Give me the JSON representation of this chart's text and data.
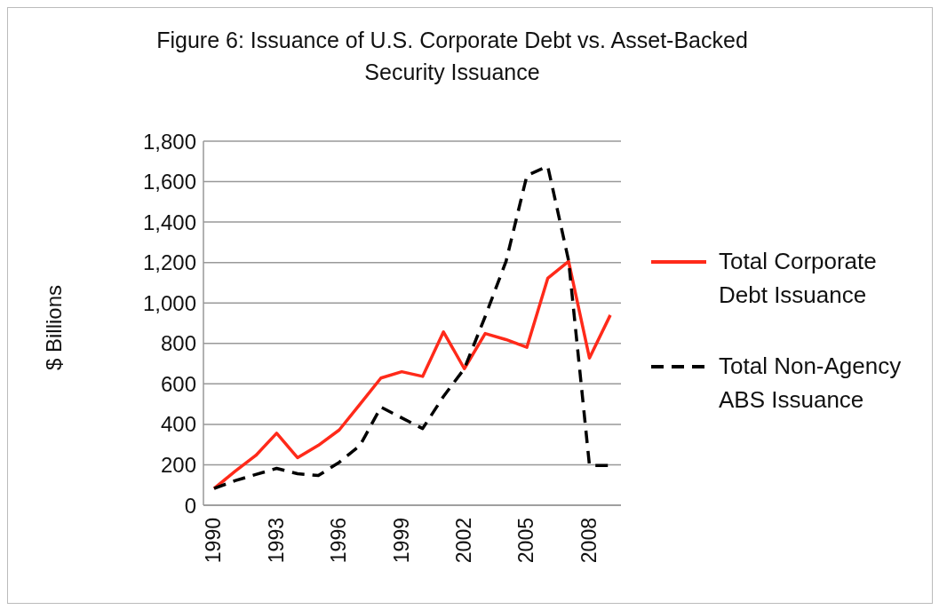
{
  "chart_data": {
    "type": "line",
    "title": "Figure 6: Issuance of U.S. Corporate Debt vs. Asset-Backed Security Issuance",
    "ylabel": "$ Billions",
    "categories": [
      "1990",
      null,
      null,
      "1993",
      null,
      null,
      "1996",
      null,
      null,
      "1999",
      null,
      null,
      "2002",
      null,
      null,
      "2005",
      null,
      null,
      "2008",
      null
    ],
    "series": [
      {
        "name": "Total Corporate Debt Issuance",
        "color": "#ff2a1a",
        "line_style": "solid",
        "values": [
          83,
          167,
          246,
          356,
          235,
          296,
          372,
          500,
          629,
          660,
          637,
          857,
          675,
          849,
          819,
          781,
          1122,
          1206,
          728,
          940
        ]
      },
      {
        "name": "Total Non-Agency ABS Issuance",
        "color": "#000000",
        "line_style": "dashed",
        "values": [
          83,
          121,
          152,
          182,
          156,
          147,
          212,
          296,
          485,
          432,
          379,
          538,
          675,
          933,
          1206,
          1630,
          1676,
          1210,
          197,
          197
        ]
      }
    ],
    "ylim": [
      0,
      1800
    ],
    "yticks": [
      0,
      200,
      400,
      600,
      800,
      {
        "value": 1000,
        "label": "1,000"
      },
      {
        "value": 1200,
        "label": "1,200"
      },
      {
        "value": 1400,
        "label": "1,400"
      },
      {
        "value": 1600,
        "label": "1,600"
      },
      {
        "value": 1800,
        "label": "1,800"
      }
    ],
    "grid": "y",
    "legend": "right",
    "marker": "none"
  }
}
